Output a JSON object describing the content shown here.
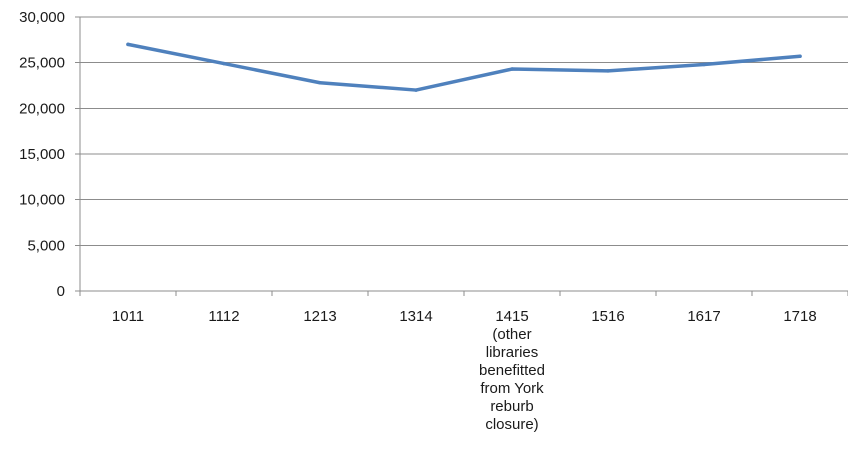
{
  "chart_data": {
    "type": "line",
    "categories": [
      "1011",
      "1112",
      "1213",
      "1314",
      "1415\n(other\nlibraries\nbenefitted\nfrom York\nreburb\nclosure)",
      "1516",
      "1617",
      "1718"
    ],
    "series": [
      {
        "values": [
          27000,
          24900,
          22800,
          22000,
          24300,
          24100,
          24800,
          25700
        ],
        "color": "#4f81bd"
      }
    ],
    "ylim": [
      0,
      30000
    ],
    "yticks": [
      "0",
      "5,000",
      "10,000",
      "15,000",
      "20,000",
      "25,000",
      "30,000"
    ],
    "yticks_values": [
      0,
      5000,
      10000,
      15000,
      20000,
      25000,
      30000
    ],
    "grid": true,
    "legend": "none",
    "title": "",
    "xlabel": "",
    "ylabel": ""
  }
}
